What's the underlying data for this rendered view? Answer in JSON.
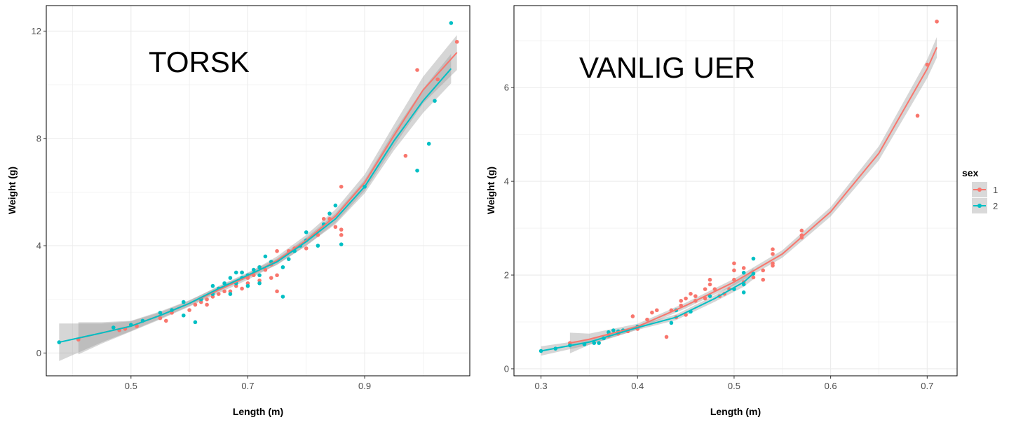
{
  "colors": {
    "sex_1": "#F8766D",
    "sex_2": "#00BFC4",
    "band": "#999999"
  },
  "legend": {
    "title": "sex",
    "placement": "right",
    "entries": [
      "1",
      "2"
    ]
  },
  "chart_data": [
    {
      "type": "scatter",
      "title": "TORSK",
      "xlabel": "Length (m)",
      "ylabel": "Weight (g)",
      "xlim": [
        0.355,
        1.08
      ],
      "ylim": [
        -0.85,
        12.95
      ],
      "xticks": [
        "0.5",
        "0.7",
        "0.9"
      ],
      "xtick_values": [
        0.5,
        0.7,
        0.9
      ],
      "yticks": [
        "0",
        "4",
        "8",
        "12"
      ],
      "ytick_values": [
        0,
        4,
        8,
        12
      ],
      "grid": true,
      "series": [
        {
          "name": "1",
          "points": [
            [
              0.41,
              0.5
            ],
            [
              0.48,
              0.85
            ],
            [
              0.49,
              0.9
            ],
            [
              0.51,
              1.0
            ],
            [
              0.55,
              1.3
            ],
            [
              0.56,
              1.2
            ],
            [
              0.57,
              1.5
            ],
            [
              0.6,
              1.6
            ],
            [
              0.61,
              1.8
            ],
            [
              0.62,
              1.9
            ],
            [
              0.63,
              2.0
            ],
            [
              0.63,
              1.8
            ],
            [
              0.64,
              2.1
            ],
            [
              0.65,
              2.2
            ],
            [
              0.66,
              2.3
            ],
            [
              0.67,
              2.3
            ],
            [
              0.68,
              2.5
            ],
            [
              0.69,
              3.0
            ],
            [
              0.69,
              2.4
            ],
            [
              0.7,
              2.8
            ],
            [
              0.7,
              2.6
            ],
            [
              0.71,
              2.9
            ],
            [
              0.72,
              3.2
            ],
            [
              0.72,
              2.7
            ],
            [
              0.73,
              3.1
            ],
            [
              0.74,
              2.8
            ],
            [
              0.74,
              3.3
            ],
            [
              0.75,
              3.8
            ],
            [
              0.75,
              2.9
            ],
            [
              0.75,
              2.3
            ],
            [
              0.77,
              3.8
            ],
            [
              0.78,
              3.9
            ],
            [
              0.8,
              3.9
            ],
            [
              0.82,
              4.4
            ],
            [
              0.83,
              5.0
            ],
            [
              0.84,
              5.0
            ],
            [
              0.85,
              4.7
            ],
            [
              0.86,
              6.2
            ],
            [
              0.86,
              4.6
            ],
            [
              0.86,
              4.4
            ],
            [
              0.97,
              7.35
            ],
            [
              0.99,
              10.55
            ],
            [
              1.025,
              10.2
            ],
            [
              1.058,
              11.6
            ]
          ],
          "fit": [
            [
              0.41,
              0.55
            ],
            [
              0.45,
              0.75
            ],
            [
              0.5,
              1.0
            ],
            [
              0.55,
              1.4
            ],
            [
              0.6,
              1.85
            ],
            [
              0.65,
              2.35
            ],
            [
              0.7,
              2.85
            ],
            [
              0.75,
              3.45
            ],
            [
              0.8,
              4.2
            ],
            [
              0.85,
              5.1
            ],
            [
              0.9,
              6.35
            ],
            [
              0.95,
              8.1
            ],
            [
              1.0,
              9.8
            ],
            [
              1.058,
              11.2
            ]
          ],
          "se": [
            0.6,
            0.4,
            0.2,
            0.15,
            0.12,
            0.12,
            0.12,
            0.15,
            0.2,
            0.25,
            0.3,
            0.4,
            0.5,
            0.65
          ]
        },
        {
          "name": "2",
          "points": [
            [
              0.377,
              0.4
            ],
            [
              0.47,
              0.95
            ],
            [
              0.5,
              1.05
            ],
            [
              0.52,
              1.2
            ],
            [
              0.55,
              1.5
            ],
            [
              0.57,
              1.6
            ],
            [
              0.59,
              1.9
            ],
            [
              0.59,
              1.4
            ],
            [
              0.61,
              1.15
            ],
            [
              0.62,
              2.0
            ],
            [
              0.64,
              2.2
            ],
            [
              0.64,
              2.5
            ],
            [
              0.65,
              2.4
            ],
            [
              0.66,
              2.6
            ],
            [
              0.67,
              2.8
            ],
            [
              0.67,
              2.2
            ],
            [
              0.68,
              3.0
            ],
            [
              0.68,
              2.6
            ],
            [
              0.69,
              3.0
            ],
            [
              0.69,
              2.8
            ],
            [
              0.7,
              2.9
            ],
            [
              0.7,
              2.5
            ],
            [
              0.71,
              3.1
            ],
            [
              0.72,
              3.2
            ],
            [
              0.72,
              2.9
            ],
            [
              0.72,
              2.6
            ],
            [
              0.73,
              3.6
            ],
            [
              0.74,
              3.4
            ],
            [
              0.76,
              3.2
            ],
            [
              0.76,
              2.1
            ],
            [
              0.77,
              3.5
            ],
            [
              0.78,
              3.8
            ],
            [
              0.79,
              4.0
            ],
            [
              0.8,
              4.5
            ],
            [
              0.8,
              4.2
            ],
            [
              0.82,
              4.0
            ],
            [
              0.83,
              4.8
            ],
            [
              0.84,
              5.2
            ],
            [
              0.85,
              5.5
            ],
            [
              0.86,
              4.05
            ],
            [
              0.9,
              6.2
            ],
            [
              0.99,
              6.8
            ],
            [
              1.01,
              7.8
            ],
            [
              1.02,
              9.4
            ],
            [
              1.048,
              12.3
            ]
          ],
          "fit": [
            [
              0.377,
              0.4
            ],
            [
              0.45,
              0.75
            ],
            [
              0.5,
              1.0
            ],
            [
              0.55,
              1.4
            ],
            [
              0.6,
              1.85
            ],
            [
              0.65,
              2.4
            ],
            [
              0.7,
              2.9
            ],
            [
              0.75,
              3.4
            ],
            [
              0.8,
              4.15
            ],
            [
              0.85,
              5.0
            ],
            [
              0.9,
              6.2
            ],
            [
              0.95,
              7.9
            ],
            [
              1.0,
              9.4
            ],
            [
              1.048,
              10.6
            ]
          ],
          "se": [
            0.7,
            0.35,
            0.18,
            0.12,
            0.1,
            0.1,
            0.1,
            0.12,
            0.15,
            0.2,
            0.25,
            0.35,
            0.45,
            0.55
          ]
        }
      ]
    },
    {
      "type": "scatter",
      "title": "VANLIG UER",
      "xlabel": "Length (m)",
      "ylabel": "Weight (g)",
      "xlim": [
        0.272,
        0.731
      ],
      "ylim": [
        -0.15,
        7.75
      ],
      "xticks": [
        "0.3",
        "0.4",
        "0.5",
        "0.6",
        "0.7"
      ],
      "xtick_values": [
        0.3,
        0.4,
        0.5,
        0.6,
        0.7
      ],
      "yticks": [
        "0",
        "2",
        "4",
        "6"
      ],
      "ytick_values": [
        0,
        2,
        4,
        6
      ],
      "grid": true,
      "series": [
        {
          "name": "1",
          "points": [
            [
              0.33,
              0.55
            ],
            [
              0.37,
              0.7
            ],
            [
              0.38,
              0.75
            ],
            [
              0.39,
              0.8
            ],
            [
              0.395,
              1.12
            ],
            [
              0.4,
              0.85
            ],
            [
              0.41,
              1.05
            ],
            [
              0.415,
              1.2
            ],
            [
              0.42,
              1.25
            ],
            [
              0.43,
              0.68
            ],
            [
              0.435,
              1.25
            ],
            [
              0.44,
              1.1
            ],
            [
              0.445,
              1.45
            ],
            [
              0.445,
              1.35
            ],
            [
              0.45,
              1.5
            ],
            [
              0.45,
              1.15
            ],
            [
              0.455,
              1.6
            ],
            [
              0.46,
              1.55
            ],
            [
              0.46,
              1.45
            ],
            [
              0.47,
              1.7
            ],
            [
              0.47,
              1.5
            ],
            [
              0.475,
              1.9
            ],
            [
              0.475,
              1.8
            ],
            [
              0.48,
              1.7
            ],
            [
              0.485,
              1.55
            ],
            [
              0.49,
              1.6
            ],
            [
              0.495,
              1.7
            ],
            [
              0.5,
              2.25
            ],
            [
              0.5,
              2.1
            ],
            [
              0.5,
              1.9
            ],
            [
              0.51,
              2.15
            ],
            [
              0.51,
              1.85
            ],
            [
              0.52,
              1.95
            ],
            [
              0.53,
              2.1
            ],
            [
              0.53,
              1.9
            ],
            [
              0.54,
              2.55
            ],
            [
              0.54,
              2.45
            ],
            [
              0.54,
              2.25
            ],
            [
              0.54,
              2.2
            ],
            [
              0.57,
              2.95
            ],
            [
              0.57,
              2.85
            ],
            [
              0.57,
              2.8
            ],
            [
              0.69,
              5.4
            ],
            [
              0.7,
              6.49
            ],
            [
              0.71,
              7.41
            ]
          ],
          "fit": [
            [
              0.33,
              0.55
            ],
            [
              0.35,
              0.63
            ],
            [
              0.4,
              0.9
            ],
            [
              0.45,
              1.35
            ],
            [
              0.5,
              1.85
            ],
            [
              0.55,
              2.45
            ],
            [
              0.6,
              3.35
            ],
            [
              0.65,
              4.6
            ],
            [
              0.7,
              6.4
            ],
            [
              0.71,
              6.86
            ]
          ],
          "se": [
            0.22,
            0.12,
            0.06,
            0.06,
            0.07,
            0.08,
            0.1,
            0.15,
            0.2,
            0.22
          ]
        },
        {
          "name": "2",
          "points": [
            [
              0.3,
              0.38
            ],
            [
              0.315,
              0.43
            ],
            [
              0.33,
              0.5
            ],
            [
              0.345,
              0.52
            ],
            [
              0.355,
              0.55
            ],
            [
              0.36,
              0.55
            ],
            [
              0.365,
              0.65
            ],
            [
              0.37,
              0.78
            ],
            [
              0.375,
              0.82
            ],
            [
              0.38,
              0.8
            ],
            [
              0.385,
              0.82
            ],
            [
              0.4,
              0.9
            ],
            [
              0.435,
              0.98
            ],
            [
              0.44,
              1.25
            ],
            [
              0.455,
              1.22
            ],
            [
              0.475,
              1.55
            ],
            [
              0.5,
              1.7
            ],
            [
              0.51,
              2.05
            ],
            [
              0.51,
              1.8
            ],
            [
              0.51,
              1.63
            ],
            [
              0.52,
              2.35
            ],
            [
              0.52,
              2.03
            ]
          ],
          "fit": [
            [
              0.3,
              0.38
            ],
            [
              0.35,
              0.57
            ],
            [
              0.4,
              0.88
            ],
            [
              0.44,
              1.1
            ],
            [
              0.48,
              1.5
            ],
            [
              0.51,
              1.85
            ],
            [
              0.52,
              2.03
            ]
          ],
          "se": [
            0.1,
            0.06,
            0.05,
            0.06,
            0.07,
            0.1,
            0.12
          ]
        }
      ]
    }
  ]
}
